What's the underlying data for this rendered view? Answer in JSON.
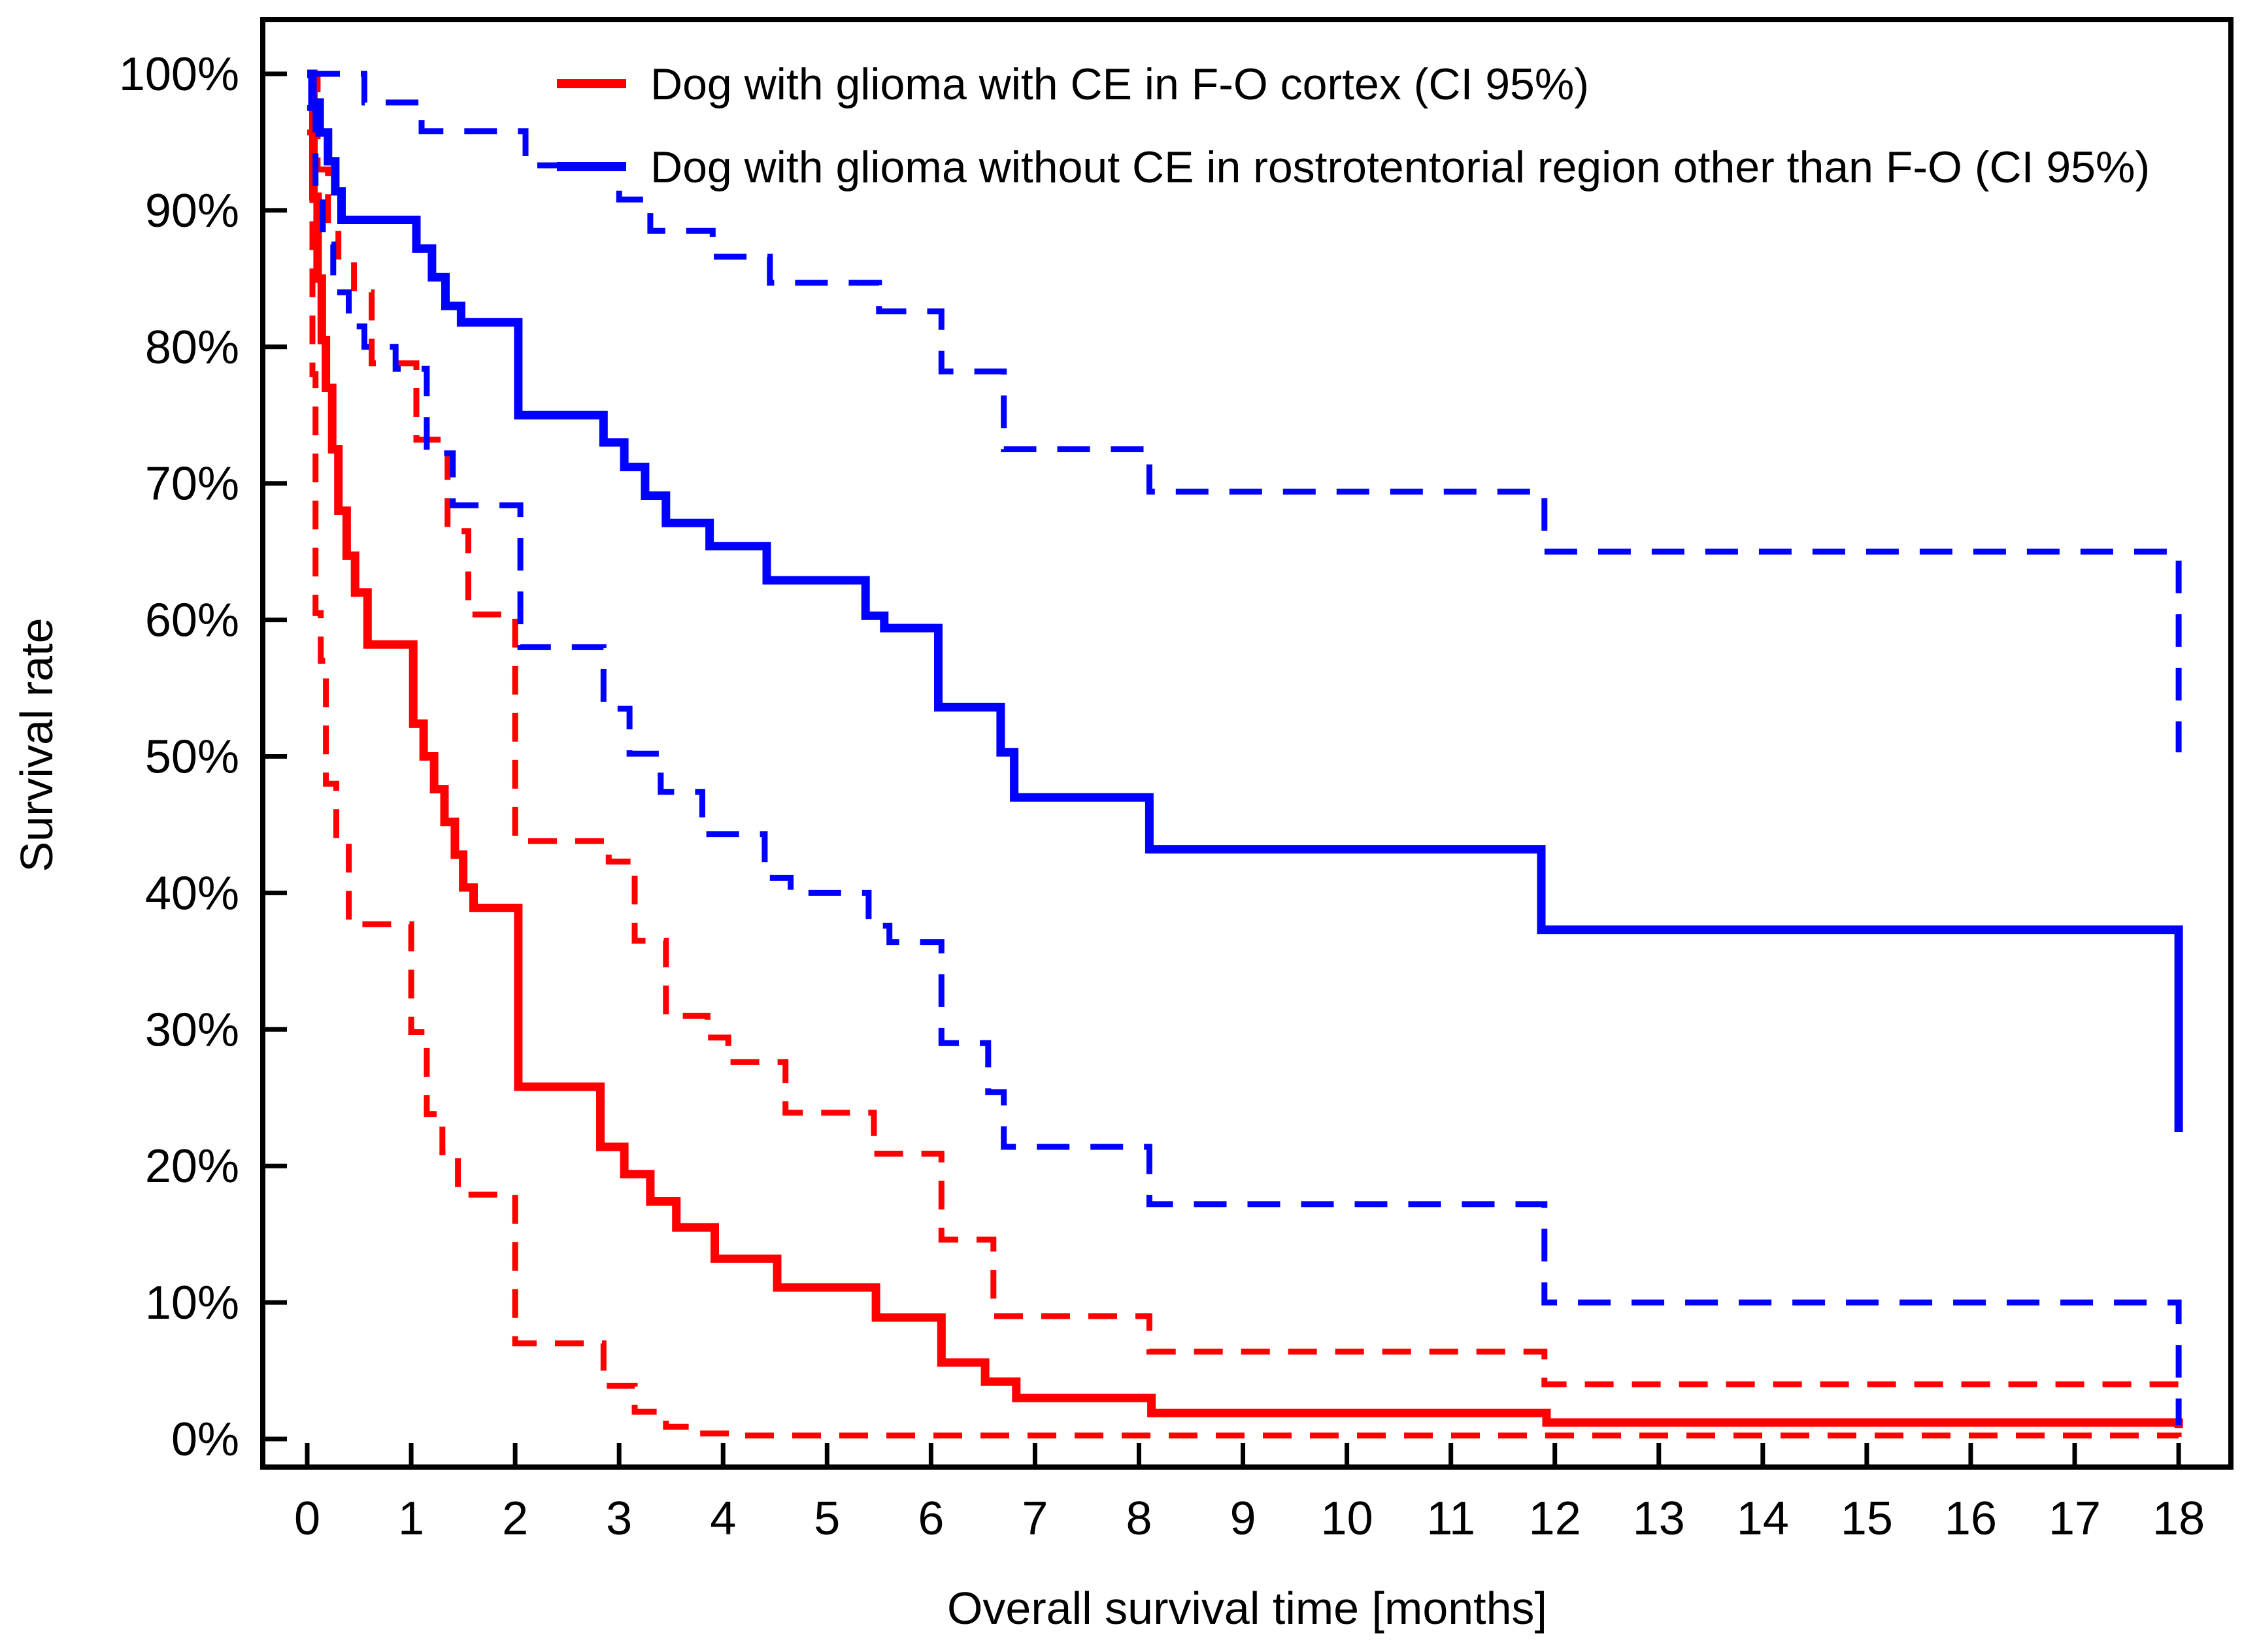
{
  "chart_data": {
    "type": "line",
    "subtype": "kaplan-meier-step",
    "xlabel": "Overall survival time [months]",
    "ylabel": "Survival rate",
    "xlim": [
      0,
      18
    ],
    "ylim": [
      0,
      100
    ],
    "grid": false,
    "legend_position": "top-inside",
    "x_ticks": [
      0,
      1,
      2,
      3,
      4,
      5,
      6,
      7,
      8,
      9,
      10,
      11,
      12,
      13,
      14,
      15,
      16,
      17,
      18
    ],
    "y_ticks": [
      {
        "value": 0,
        "label": "0%"
      },
      {
        "value": 10,
        "label": "10%"
      },
      {
        "value": 20,
        "label": "20%"
      },
      {
        "value": 30,
        "label": "30%"
      },
      {
        "value": 40,
        "label": "40%"
      },
      {
        "value": 50,
        "label": "50%"
      },
      {
        "value": 60,
        "label": "60%"
      },
      {
        "value": 70,
        "label": "70%"
      },
      {
        "value": 80,
        "label": "80%"
      },
      {
        "value": 90,
        "label": "90%"
      },
      {
        "value": 100,
        "label": "100%"
      }
    ],
    "colors": {
      "group_red": "#ff0000",
      "group_blue": "#0000ff",
      "axis": "#000000"
    },
    "series": [
      {
        "name": "red-solid-survival",
        "label": "Dog with glioma with CE in F-O cortex",
        "color": "#ff0000",
        "style": "solid",
        "width": 13,
        "points": [
          [
            0,
            100
          ],
          [
            0.06,
            91
          ],
          [
            0.1,
            85
          ],
          [
            0.14,
            80.5
          ],
          [
            0.18,
            77
          ],
          [
            0.24,
            72.5
          ],
          [
            0.3,
            68
          ],
          [
            0.38,
            64.7
          ],
          [
            0.46,
            62
          ],
          [
            0.58,
            58.2
          ],
          [
            1.02,
            52.4
          ],
          [
            1.12,
            50
          ],
          [
            1.22,
            47.6
          ],
          [
            1.32,
            45.2
          ],
          [
            1.42,
            42.8
          ],
          [
            1.5,
            40.4
          ],
          [
            1.6,
            38.9
          ],
          [
            2.03,
            25.8
          ],
          [
            2.82,
            21.4
          ],
          [
            3.05,
            19.4
          ],
          [
            3.3,
            17.4
          ],
          [
            3.55,
            15.5
          ],
          [
            3.92,
            13.2
          ],
          [
            4.52,
            11.1
          ],
          [
            5.47,
            8.9
          ],
          [
            6.1,
            5.6
          ],
          [
            6.52,
            4.2
          ],
          [
            6.82,
            3.0
          ],
          [
            8.12,
            1.9
          ],
          [
            11.92,
            1.2
          ],
          [
            18,
            0.8
          ]
        ]
      },
      {
        "name": "red-upper-ci",
        "label": "Upper 95% CI (red group)",
        "color": "#ff0000",
        "style": "dashed",
        "width": 9,
        "points": [
          [
            0,
            100
          ],
          [
            0.1,
            93
          ],
          [
            0.2,
            88.5
          ],
          [
            0.3,
            86.2
          ],
          [
            0.45,
            84
          ],
          [
            0.62,
            78.8
          ],
          [
            1.05,
            73.2
          ],
          [
            1.35,
            66.5
          ],
          [
            1.55,
            60.4
          ],
          [
            2.0,
            43.8
          ],
          [
            2.9,
            42.3
          ],
          [
            3.15,
            36.5
          ],
          [
            3.45,
            31
          ],
          [
            3.85,
            29.4
          ],
          [
            4.05,
            27.6
          ],
          [
            4.6,
            23.9
          ],
          [
            5.45,
            20.9
          ],
          [
            6.1,
            14.6
          ],
          [
            6.6,
            9
          ],
          [
            8.1,
            6.4
          ],
          [
            11.9,
            4
          ],
          [
            18,
            2.5
          ]
        ]
      },
      {
        "name": "red-lower-ci",
        "label": "Lower 95% CI (red group)",
        "color": "#ff0000",
        "style": "dashed",
        "width": 9,
        "points": [
          [
            0,
            95.7
          ],
          [
            0.05,
            78
          ],
          [
            0.08,
            60.5
          ],
          [
            0.13,
            57
          ],
          [
            0.18,
            48
          ],
          [
            0.28,
            44
          ],
          [
            0.4,
            37.7
          ],
          [
            1.0,
            29.8
          ],
          [
            1.15,
            23.8
          ],
          [
            1.3,
            21
          ],
          [
            1.45,
            17.9
          ],
          [
            2.0,
            7
          ],
          [
            2.85,
            3.9
          ],
          [
            3.15,
            2
          ],
          [
            3.45,
            0.9
          ],
          [
            3.75,
            0.4
          ],
          [
            4.2,
            0.25
          ],
          [
            18,
            0.15
          ]
        ]
      },
      {
        "name": "blue-solid-survival",
        "label": "Dog with glioma without CE in rostrotentorial region other than F-O",
        "color": "#0000ff",
        "style": "solid",
        "width": 13,
        "points": [
          [
            0,
            100
          ],
          [
            0.05,
            97.9
          ],
          [
            0.12,
            95.7
          ],
          [
            0.2,
            93.6
          ],
          [
            0.27,
            91.4
          ],
          [
            0.33,
            89.3
          ],
          [
            1.05,
            87.2
          ],
          [
            1.2,
            85.1
          ],
          [
            1.33,
            83
          ],
          [
            1.48,
            81.8
          ],
          [
            2.03,
            75
          ],
          [
            2.85,
            73
          ],
          [
            3.05,
            71.2
          ],
          [
            3.25,
            69.1
          ],
          [
            3.45,
            67.1
          ],
          [
            3.87,
            65.4
          ],
          [
            4.42,
            62.9
          ],
          [
            5.37,
            60.3
          ],
          [
            5.55,
            59.4
          ],
          [
            6.07,
            53.6
          ],
          [
            6.67,
            50.3
          ],
          [
            6.8,
            47
          ],
          [
            8.1,
            43.2
          ],
          [
            11.87,
            37.3
          ],
          [
            18,
            22.5
          ]
        ]
      },
      {
        "name": "blue-upper-ci",
        "label": "Upper 95% CI (blue group)",
        "color": "#0000ff",
        "style": "dashed",
        "width": 9,
        "points": [
          [
            0,
            100
          ],
          [
            0.55,
            97.9
          ],
          [
            1.1,
            95.8
          ],
          [
            2.1,
            93.3
          ],
          [
            3.0,
            90.8
          ],
          [
            3.3,
            88.5
          ],
          [
            3.9,
            86.6
          ],
          [
            4.45,
            84.7
          ],
          [
            5.5,
            82.6
          ],
          [
            6.1,
            78.2
          ],
          [
            6.7,
            72.5
          ],
          [
            8.1,
            69.4
          ],
          [
            11.9,
            65
          ],
          [
            18,
            50.3
          ]
        ]
      },
      {
        "name": "blue-lower-ci",
        "label": "Lower 95% CI (blue group)",
        "color": "#0000ff",
        "style": "dashed",
        "width": 9,
        "points": [
          [
            0,
            97.5
          ],
          [
            0.08,
            91.5
          ],
          [
            0.15,
            87.5
          ],
          [
            0.25,
            84
          ],
          [
            0.4,
            81.5
          ],
          [
            0.55,
            80
          ],
          [
            0.85,
            78.4
          ],
          [
            1.15,
            72.2
          ],
          [
            1.4,
            68.4
          ],
          [
            2.05,
            58
          ],
          [
            2.85,
            53.5
          ],
          [
            3.1,
            50.2
          ],
          [
            3.4,
            47.4
          ],
          [
            3.8,
            44.3
          ],
          [
            4.4,
            41.1
          ],
          [
            4.65,
            40
          ],
          [
            5.4,
            37.6
          ],
          [
            5.6,
            36.4
          ],
          [
            6.1,
            29
          ],
          [
            6.55,
            25.4
          ],
          [
            6.7,
            21.4
          ],
          [
            8.1,
            17.2
          ],
          [
            11.9,
            10
          ],
          [
            18,
            1
          ]
        ]
      }
    ]
  },
  "legend": {
    "items": [
      {
        "label": "Dog with glioma with CE in F-O cortex (CI 95%)",
        "color": "#ff0000"
      },
      {
        "label": "Dog with glioma without CE in rostrotentorial region other than F-O (CI 95%)",
        "color": "#0000ff"
      }
    ]
  }
}
